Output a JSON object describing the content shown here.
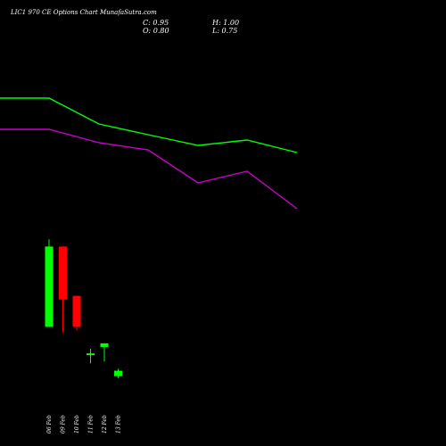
{
  "header": {
    "title": "LIC1 970  CE Options  Chart MunafaSutra.com",
    "close_text": "C: 0.95",
    "open_text": "O: 0.80",
    "high_text": "H: 1.00",
    "low_text": "L: 0.75"
  },
  "colors": {
    "background": "#000000",
    "up": "#00ff00",
    "down": "#ff0000",
    "upper_line": "#00ff00",
    "lower_line": "#cc00cc",
    "text": "#ffffff"
  },
  "chart_data": {
    "type": "candlestick",
    "categories": [
      "06 Feb",
      "09 Feb",
      "10 Feb",
      "11 Feb",
      "12 Feb",
      "13 Feb"
    ],
    "candles": [
      {
        "date": "06 Feb",
        "open": 2.15,
        "high": 4.55,
        "low": 2.15,
        "close": 4.35,
        "direction": "up"
      },
      {
        "date": "09 Feb",
        "open": 4.35,
        "high": 4.35,
        "low": 2.0,
        "close": 2.9,
        "direction": "down"
      },
      {
        "date": "10 Feb",
        "open": 3.0,
        "high": 3.0,
        "low": 2.05,
        "close": 2.15,
        "direction": "down"
      },
      {
        "date": "11 Feb",
        "open": 1.4,
        "high": 1.55,
        "low": 1.15,
        "close": 1.4,
        "direction": "up"
      },
      {
        "date": "12 Feb",
        "open": 1.6,
        "high": 1.7,
        "low": 1.2,
        "close": 1.7,
        "direction": "up"
      },
      {
        "date": "13 Feb",
        "open": 0.8,
        "high": 1.0,
        "low": 0.75,
        "close": 0.95,
        "direction": "up"
      }
    ],
    "overlay_series": [
      {
        "color": "#00ff00",
        "x": [
          "",
          "06 Feb",
          "09 Feb",
          "10 Feb",
          "11 Feb",
          "12 Feb",
          "13 Feb"
        ],
        "values": [
          110,
          110,
          139,
          151,
          163,
          157,
          171
        ]
      },
      {
        "color": "#cc00cc",
        "x": [
          "",
          "06 Feb",
          "09 Feb",
          "10 Feb",
          "11 Feb",
          "12 Feb",
          "13 Feb"
        ],
        "values": [
          145,
          145,
          160,
          168,
          205,
          192,
          234
        ]
      }
    ],
    "price_range": [
      0.5,
      4.75
    ],
    "grid": false
  }
}
